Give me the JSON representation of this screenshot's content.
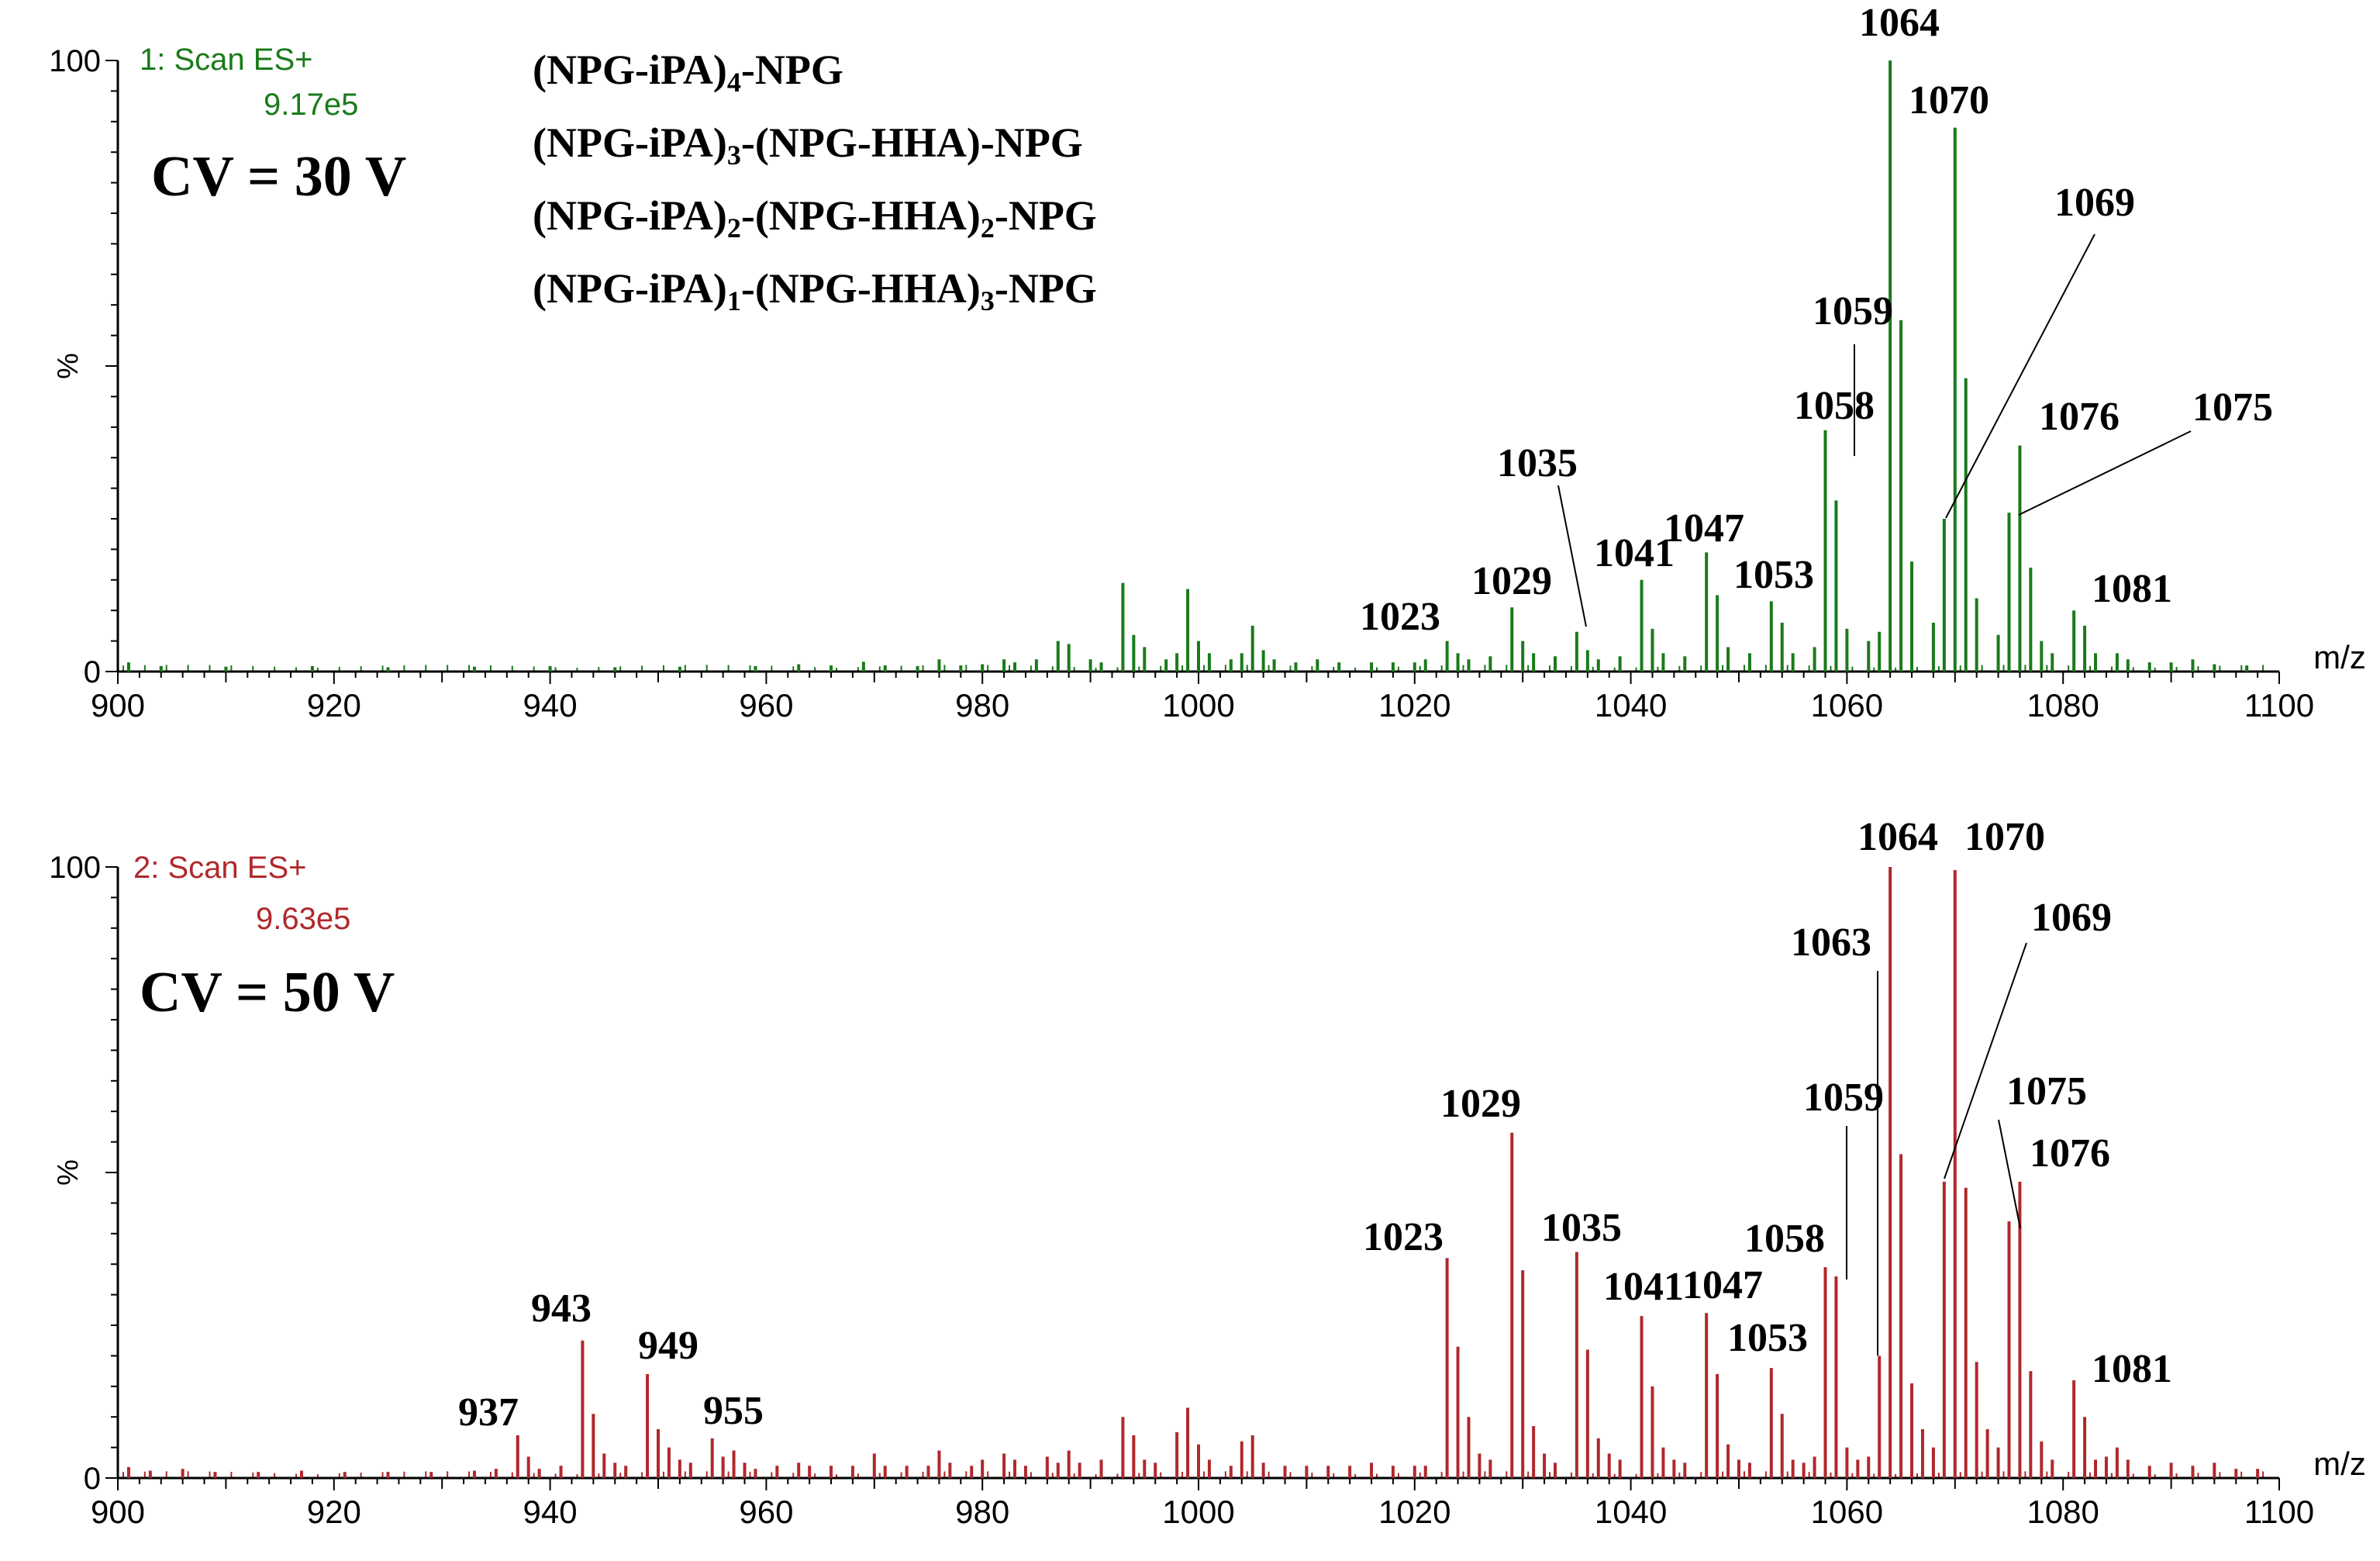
{
  "chart_data": [
    {
      "type": "bar",
      "title": "1: Scan ES+",
      "scale": "9.17e5",
      "condition": "CV = 30 V",
      "legend": [
        {
          "text": "(NPG-iPA)",
          "sub": "4",
          "tail": "-NPG"
        },
        {
          "text": "(NPG-iPA)",
          "sub": "3",
          "tail": "-(NPG-HHA)-NPG"
        },
        {
          "text": "(NPG-iPA)",
          "sub": "2",
          "tail": "-(NPG-HHA)",
          "sub2": "2",
          "tail2": "-NPG"
        },
        {
          "text": "(NPG-iPA)",
          "sub": "1",
          "tail": "-(NPG-HHA)",
          "sub2": "3",
          "tail2": "-NPG"
        }
      ],
      "xlabel": "m/z",
      "ylabel": "%",
      "xlim": [
        900,
        1100
      ],
      "ylim": [
        0,
        100
      ],
      "x_ticks": [
        "900",
        "920",
        "940",
        "960",
        "980",
        "1000",
        "1020",
        "1040",
        "1060",
        "1080",
        "1100"
      ],
      "y_ticks": [
        "0",
        "100"
      ],
      "color": "#1a7a1a",
      "peaks": [
        [
          901,
          1.5
        ],
        [
          904,
          0.9
        ],
        [
          910,
          0.8
        ],
        [
          918,
          0.9
        ],
        [
          925,
          0.7
        ],
        [
          933,
          0.8
        ],
        [
          940,
          0.9
        ],
        [
          946,
          0.7
        ],
        [
          952,
          0.8
        ],
        [
          959,
          0.9
        ],
        [
          963,
          1.2
        ],
        [
          966,
          1.0
        ],
        [
          969,
          1.6
        ],
        [
          971,
          1.0
        ],
        [
          974,
          0.9
        ],
        [
          976,
          2.0
        ],
        [
          978,
          1.0
        ],
        [
          980,
          1.2
        ],
        [
          982,
          2.0
        ],
        [
          983,
          1.5
        ],
        [
          985,
          2.0
        ],
        [
          987,
          5.0
        ],
        [
          988,
          4.5
        ],
        [
          990,
          2.0
        ],
        [
          991,
          1.5
        ],
        [
          993,
          14.5
        ],
        [
          994,
          6.0
        ],
        [
          995,
          4.0
        ],
        [
          997,
          2.0
        ],
        [
          998,
          3.0
        ],
        [
          999,
          13.5
        ],
        [
          1000,
          5.0
        ],
        [
          1001,
          3.0
        ],
        [
          1003,
          2.0
        ],
        [
          1004,
          3.0
        ],
        [
          1005,
          7.5
        ],
        [
          1006,
          3.5
        ],
        [
          1007,
          2.0
        ],
        [
          1009,
          1.5
        ],
        [
          1011,
          2.0
        ],
        [
          1013,
          1.5
        ],
        [
          1016,
          1.5
        ],
        [
          1018,
          1.5
        ],
        [
          1020,
          1.5
        ],
        [
          1021,
          2.0
        ],
        [
          1023,
          5.0
        ],
        [
          1024,
          3.0
        ],
        [
          1025,
          2.0
        ],
        [
          1027,
          2.5
        ],
        [
          1029,
          10.5
        ],
        [
          1030,
          5.0
        ],
        [
          1031,
          3.0
        ],
        [
          1033,
          2.5
        ],
        [
          1035,
          6.5
        ],
        [
          1036,
          3.5
        ],
        [
          1037,
          2.0
        ],
        [
          1039,
          2.5
        ],
        [
          1041,
          15.0
        ],
        [
          1042,
          7.0
        ],
        [
          1043,
          3.0
        ],
        [
          1045,
          2.5
        ],
        [
          1047,
          19.5
        ],
        [
          1048,
          12.5
        ],
        [
          1049,
          4.0
        ],
        [
          1051,
          3.0
        ],
        [
          1053,
          11.5
        ],
        [
          1054,
          8.0
        ],
        [
          1055,
          3.0
        ],
        [
          1057,
          4.0
        ],
        [
          1058,
          39.5
        ],
        [
          1059,
          28.0
        ],
        [
          1060,
          7.0
        ],
        [
          1062,
          5.0
        ],
        [
          1063,
          6.5
        ],
        [
          1064,
          100
        ],
        [
          1065,
          57.5
        ],
        [
          1066,
          18.0
        ],
        [
          1068,
          8.0
        ],
        [
          1069,
          25.0
        ],
        [
          1070,
          89.0
        ],
        [
          1071,
          48.0
        ],
        [
          1072,
          12.0
        ],
        [
          1074,
          6.0
        ],
        [
          1075,
          26.0
        ],
        [
          1076,
          37.0
        ],
        [
          1077,
          17.0
        ],
        [
          1078,
          5.0
        ],
        [
          1079,
          3.0
        ],
        [
          1081,
          10.0
        ],
        [
          1082,
          7.5
        ],
        [
          1083,
          3.0
        ],
        [
          1085,
          3.0
        ],
        [
          1086,
          2.0
        ],
        [
          1088,
          1.5
        ],
        [
          1090,
          1.5
        ],
        [
          1092,
          2.0
        ],
        [
          1094,
          1.2
        ],
        [
          1097,
          1.0
        ]
      ],
      "annotations": [
        {
          "label": "1023",
          "x": 1023
        },
        {
          "label": "1029",
          "x": 1029
        },
        {
          "label": "1035",
          "x": 1035
        },
        {
          "label": "1041",
          "x": 1041
        },
        {
          "label": "1047",
          "x": 1047
        },
        {
          "label": "1053",
          "x": 1053
        },
        {
          "label": "1058",
          "x": 1058
        },
        {
          "label": "1059",
          "x": 1059
        },
        {
          "label": "1064",
          "x": 1064
        },
        {
          "label": "1070",
          "x": 1070
        },
        {
          "label": "1069",
          "x": 1069
        },
        {
          "label": "1076",
          "x": 1076
        },
        {
          "label": "1075",
          "x": 1075
        },
        {
          "label": "1081",
          "x": 1081
        }
      ]
    },
    {
      "type": "bar",
      "title": "2: Scan ES+",
      "scale": "9.63e5",
      "condition": "CV = 50 V",
      "xlabel": "m/z",
      "ylabel": "%",
      "xlim": [
        900,
        1100
      ],
      "ylim": [
        0,
        100
      ],
      "x_ticks": [
        "900",
        "920",
        "940",
        "960",
        "980",
        "1000",
        "1020",
        "1040",
        "1060",
        "1080",
        "1100"
      ],
      "y_ticks": [
        "0",
        "100"
      ],
      "color": "#b0282c",
      "peaks": [
        [
          901,
          1.8
        ],
        [
          903,
          1.2
        ],
        [
          906,
          1.5
        ],
        [
          909,
          1.0
        ],
        [
          913,
          1.0
        ],
        [
          917,
          1.2
        ],
        [
          921,
          1.0
        ],
        [
          925,
          1.0
        ],
        [
          929,
          1.0
        ],
        [
          933,
          1.2
        ],
        [
          935,
          1.5
        ],
        [
          937,
          7.0
        ],
        [
          938,
          3.5
        ],
        [
          939,
          1.5
        ],
        [
          941,
          2.0
        ],
        [
          943,
          22.5
        ],
        [
          944,
          10.5
        ],
        [
          945,
          4.0
        ],
        [
          946,
          2.5
        ],
        [
          947,
          2.0
        ],
        [
          949,
          17.0
        ],
        [
          950,
          8.0
        ],
        [
          951,
          5.0
        ],
        [
          952,
          3.0
        ],
        [
          953,
          2.5
        ],
        [
          955,
          6.5
        ],
        [
          956,
          3.5
        ],
        [
          957,
          4.5
        ],
        [
          958,
          2.5
        ],
        [
          959,
          1.5
        ],
        [
          961,
          2.0
        ],
        [
          963,
          2.5
        ],
        [
          964,
          2.0
        ],
        [
          966,
          2.0
        ],
        [
          968,
          2.0
        ],
        [
          970,
          4.0
        ],
        [
          971,
          2.0
        ],
        [
          973,
          2.0
        ],
        [
          975,
          2.0
        ],
        [
          976,
          4.5
        ],
        [
          977,
          2.5
        ],
        [
          979,
          2.0
        ],
        [
          980,
          3.0
        ],
        [
          982,
          4.0
        ],
        [
          983,
          3.0
        ],
        [
          984,
          2.0
        ],
        [
          986,
          3.5
        ],
        [
          987,
          2.5
        ],
        [
          988,
          4.5
        ],
        [
          989,
          2.5
        ],
        [
          991,
          3.0
        ],
        [
          993,
          10.0
        ],
        [
          994,
          7.0
        ],
        [
          995,
          3.0
        ],
        [
          996,
          2.5
        ],
        [
          998,
          7.5
        ],
        [
          999,
          11.5
        ],
        [
          1000,
          5.5
        ],
        [
          1001,
          3.0
        ],
        [
          1003,
          2.0
        ],
        [
          1004,
          6.0
        ],
        [
          1005,
          7.0
        ],
        [
          1006,
          2.5
        ],
        [
          1008,
          2.0
        ],
        [
          1010,
          2.0
        ],
        [
          1012,
          2.0
        ],
        [
          1014,
          2.0
        ],
        [
          1016,
          2.5
        ],
        [
          1018,
          2.0
        ],
        [
          1020,
          2.0
        ],
        [
          1021,
          2.0
        ],
        [
          1023,
          36.0
        ],
        [
          1024,
          21.5
        ],
        [
          1025,
          10.0
        ],
        [
          1026,
          4.0
        ],
        [
          1027,
          3.0
        ],
        [
          1029,
          56.5
        ],
        [
          1030,
          34.0
        ],
        [
          1031,
          8.5
        ],
        [
          1032,
          4.0
        ],
        [
          1033,
          2.5
        ],
        [
          1035,
          37.0
        ],
        [
          1036,
          21.0
        ],
        [
          1037,
          6.5
        ],
        [
          1038,
          4.0
        ],
        [
          1039,
          3.0
        ],
        [
          1041,
          26.5
        ],
        [
          1042,
          15.0
        ],
        [
          1043,
          5.0
        ],
        [
          1044,
          3.0
        ],
        [
          1045,
          2.5
        ],
        [
          1047,
          27.0
        ],
        [
          1048,
          17.0
        ],
        [
          1049,
          5.5
        ],
        [
          1050,
          3.0
        ],
        [
          1051,
          2.5
        ],
        [
          1053,
          18.0
        ],
        [
          1054,
          10.5
        ],
        [
          1055,
          3.0
        ],
        [
          1056,
          2.5
        ],
        [
          1057,
          3.5
        ],
        [
          1058,
          34.5
        ],
        [
          1059,
          33.0
        ],
        [
          1060,
          5.0
        ],
        [
          1061,
          3.0
        ],
        [
          1062,
          3.5
        ],
        [
          1063,
          20.0
        ],
        [
          1064,
          100
        ],
        [
          1065,
          53.0
        ],
        [
          1066,
          15.5
        ],
        [
          1067,
          8.0
        ],
        [
          1068,
          5.0
        ],
        [
          1069,
          48.5
        ],
        [
          1070,
          99.5
        ],
        [
          1071,
          47.5
        ],
        [
          1072,
          19.0
        ],
        [
          1073,
          8.0
        ],
        [
          1074,
          5.0
        ],
        [
          1075,
          42.0
        ],
        [
          1076,
          48.5
        ],
        [
          1077,
          17.5
        ],
        [
          1078,
          6.0
        ],
        [
          1079,
          3.0
        ],
        [
          1081,
          16.0
        ],
        [
          1082,
          10.0
        ],
        [
          1083,
          3.0
        ],
        [
          1084,
          3.5
        ],
        [
          1085,
          5.0
        ],
        [
          1086,
          3.0
        ],
        [
          1088,
          2.0
        ],
        [
          1090,
          2.5
        ],
        [
          1092,
          2.0
        ],
        [
          1094,
          2.5
        ],
        [
          1096,
          1.5
        ],
        [
          1098,
          1.5
        ]
      ],
      "annotations": [
        {
          "label": "937",
          "x": 937
        },
        {
          "label": "943",
          "x": 943
        },
        {
          "label": "949",
          "x": 949
        },
        {
          "label": "955",
          "x": 955
        },
        {
          "label": "1023",
          "x": 1023
        },
        {
          "label": "1029",
          "x": 1029
        },
        {
          "label": "1035",
          "x": 1035
        },
        {
          "label": "1041",
          "x": 1041
        },
        {
          "label": "1047",
          "x": 1047
        },
        {
          "label": "1053",
          "x": 1053
        },
        {
          "label": "1058",
          "x": 1058
        },
        {
          "label": "1059",
          "x": 1059
        },
        {
          "label": "1063",
          "x": 1063
        },
        {
          "label": "1064",
          "x": 1064
        },
        {
          "label": "1070",
          "x": 1070
        },
        {
          "label": "1069",
          "x": 1069
        },
        {
          "label": "1075",
          "x": 1075
        },
        {
          "label": "1076",
          "x": 1076
        },
        {
          "label": "1081",
          "x": 1081
        }
      ]
    }
  ]
}
